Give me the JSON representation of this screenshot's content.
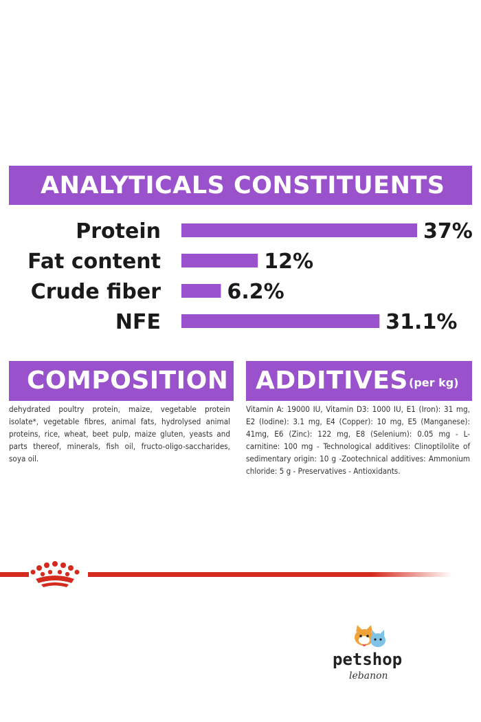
{
  "analytics": {
    "title": "ANALYTICALS CONSTITUENTS"
  },
  "chart_data": {
    "type": "bar",
    "orientation": "horizontal",
    "title": "ANALYTICALS CONSTITUENTS",
    "categories": [
      "Protein",
      "Fat content",
      "Crude fiber",
      "NFE"
    ],
    "values": [
      37,
      12,
      6.2,
      31.1
    ],
    "value_labels": [
      "37%",
      "12%",
      "6.2%",
      "31.1%"
    ],
    "unit": "%",
    "xlim": [
      0,
      37
    ],
    "grid": false,
    "legend": "none",
    "bar_color": "#9a52cc"
  },
  "composition": {
    "title": "COMPOSITION",
    "text": "dehydrated poultry protein, maize, vegetable protein isolate*, vegetable fibres, animal fats, hydrolysed animal proteins, rice, wheat, beet pulp, maize gluten, yeasts and parts thereof, minerals, fish oil, fructo-oligo-saccharides, soya oil."
  },
  "additives": {
    "title": "ADDITIVES",
    "subtitle": "(per kg)",
    "text": "Vitamin A: 19000 IU, Vitamin D3: 1000 IU, E1 (Iron): 31 mg, E2 (Iodine): 3.1 mg, E4 (Copper): 10 mg, E5 (Manganese): 41mg, E6 (Zinc): 122 mg, E8 (Selenium): 0.05 mg - L- carnitine: 100 mg - Technological additives: Clinoptilolite of sedimentary origin: 10 g -Zootechnical additives: Ammonium chloride: 5 g - Preservatives - Antioxidants."
  },
  "logo": {
    "word": "petshop",
    "sub": "lebanon"
  },
  "colors": {
    "accent": "#9a52cc",
    "divider_red": "#d52b1e",
    "text": "#1a1a1a"
  }
}
